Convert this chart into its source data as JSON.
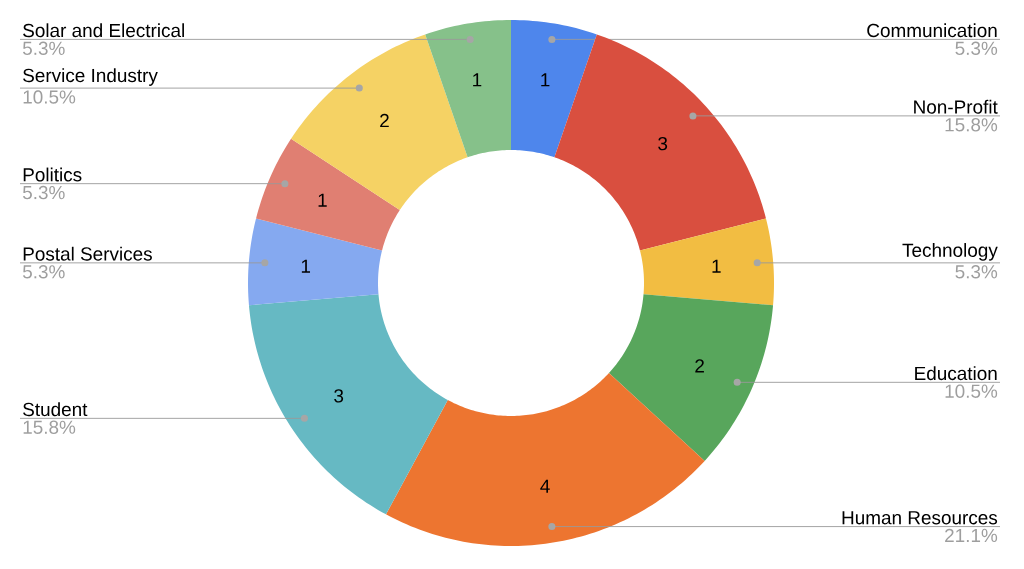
{
  "chart_data": {
    "type": "donut",
    "categories": [
      "Communication",
      "Non-Profit",
      "Technology",
      "Education",
      "Human Resources",
      "Student",
      "Postal Services",
      "Politics",
      "Service Industry",
      "Solar and Electrical"
    ],
    "values": [
      5.3,
      15.8,
      5.3,
      10.5,
      21.1,
      15.8,
      5.3,
      5.3,
      10.5,
      5.3
    ],
    "colors": [
      "#4e86ec",
      "#d94f3f",
      "#f2bd42",
      "#58a65c",
      "#ed7530",
      "#66b9c3",
      "#85a9f0",
      "#e07f72",
      "#f5d264",
      "#86c18a"
    ],
    "value_labels": [
      "5.3%",
      "15.8%",
      "5.3%",
      "10.5%",
      "21.1%",
      "15.8%",
      "5.3%",
      "5.3%",
      "10.5%",
      "5.3%"
    ],
    "annotations": [
      {
        "text": "1",
        "x": "Communication"
      },
      {
        "text": "3",
        "x": "Non-Profit"
      },
      {
        "text": "1",
        "x": "Technology"
      },
      {
        "text": "2",
        "x": "Education"
      },
      {
        "text": "4",
        "x": "Human Resources"
      },
      {
        "text": "3",
        "x": "Student"
      },
      {
        "text": "1",
        "x": "Postal Services"
      },
      {
        "text": "1",
        "x": "Politics"
      },
      {
        "text": "2",
        "x": "Service Industry"
      },
      {
        "text": "1",
        "x": "Solar and Electrical"
      }
    ]
  }
}
